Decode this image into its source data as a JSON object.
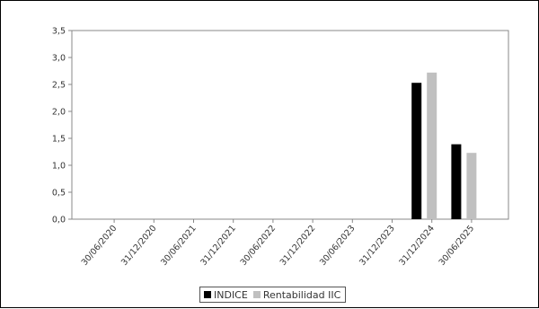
{
  "chart_data": {
    "type": "bar",
    "categories": [
      "30/06/2020",
      "31/12/2020",
      "30/06/2021",
      "31/12/2021",
      "30/06/2022",
      "31/12/2022",
      "30/06/2023",
      "31/12/2023",
      "31/12/2024",
      "30/06/2025"
    ],
    "series": [
      {
        "name": "INDICE",
        "color": "#000000",
        "values": [
          0,
          0,
          0,
          0,
          0,
          0,
          0,
          0,
          2.53,
          1.39
        ]
      },
      {
        "name": "Rentabilidad IIC",
        "color": "#c0c0c0",
        "values": [
          0,
          0,
          0,
          0,
          0,
          0,
          0,
          0,
          2.72,
          1.23
        ]
      }
    ],
    "ylim": [
      0,
      3.5
    ],
    "yticks": [
      "0,0",
      "0,5",
      "1,0",
      "1,5",
      "2,0",
      "2,5",
      "3,0",
      "3,5"
    ],
    "ytick_values": [
      0,
      0.5,
      1.0,
      1.5,
      2.0,
      2.5,
      3.0,
      3.5
    ],
    "grid": false,
    "legend_placement": "bottom-center",
    "title": "",
    "xlabel": "",
    "ylabel": ""
  }
}
